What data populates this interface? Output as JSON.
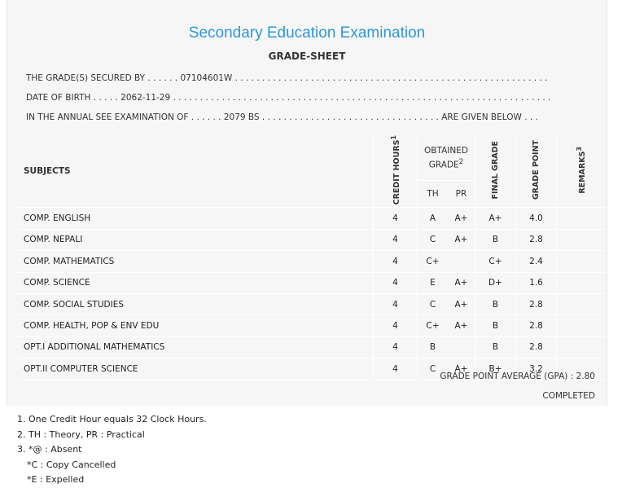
{
  "header": {
    "title": "Secondary Education Examination",
    "subtitle": "GRADE-SHEET"
  },
  "info": {
    "line1": "THE GRADE(S) SECURED BY . . . . . . 07104601W . . . . . . . . . . . . . . . . . . . . . . . . . . . . . . . . . . . . . . . . . . . . . . . . . . . . . . . . . .",
    "line2": "DATE OF BIRTH . . . . . 2062-11-29 . . . . . . . . . . . . . . . . . . . . . . . . . . . . . . . . . . . . . . . . . . . . . . . . . . . . . . . . . . . . . . . . . . . . . .",
    "line3": "IN THE ANNUAL SEE EXAMINATION OF . . . . . . 2079 BS . . . . . . . . . . . . . . . . . . . . . . . . . . . . . . . . . ARE GIVEN BELOW . . ."
  },
  "table": {
    "headers": {
      "subjects": "SUBJECTS",
      "credit": "CREDIT HOURS",
      "credit_sup": "1",
      "obtained": "OBTAINED GRADE",
      "obtained_sup": "2",
      "th": "TH",
      "pr": "PR",
      "final": "FINAL GRADE",
      "gp": "GRADE POINT",
      "remarks": "REMARKS",
      "remarks_sup": "3"
    },
    "rows": [
      {
        "subject": "COMP. ENGLISH",
        "credit": "4",
        "th": "A",
        "pr": "A+",
        "final": "A+",
        "gp": "4.0",
        "remarks": ""
      },
      {
        "subject": "COMP. NEPALI",
        "credit": "4",
        "th": "C",
        "pr": "A+",
        "final": "B",
        "gp": "2.8",
        "remarks": ""
      },
      {
        "subject": "COMP. MATHEMATICS",
        "credit": "4",
        "th": "C+",
        "pr": "",
        "final": "C+",
        "gp": "2.4",
        "remarks": ""
      },
      {
        "subject": "COMP. SCIENCE",
        "credit": "4",
        "th": "E",
        "pr": "A+",
        "final": "D+",
        "gp": "1.6",
        "remarks": ""
      },
      {
        "subject": "COMP. SOCIAL STUDIES",
        "credit": "4",
        "th": "C",
        "pr": "A+",
        "final": "B",
        "gp": "2.8",
        "remarks": ""
      },
      {
        "subject": "COMP. HEALTH, POP & ENV EDU",
        "credit": "4",
        "th": "C+",
        "pr": "A+",
        "final": "B",
        "gp": "2.8",
        "remarks": ""
      },
      {
        "subject": "OPT.I ADDITIONAL MATHEMATICS",
        "credit": "4",
        "th": "B",
        "pr": "",
        "final": "B",
        "gp": "2.8",
        "remarks": ""
      },
      {
        "subject": "OPT.II COMPUTER SCIENCE",
        "credit": "4",
        "th": "C",
        "pr": "A+",
        "final": "B+",
        "gp": "3.2",
        "remarks": ""
      }
    ]
  },
  "summary": {
    "gpa": "GRADE POINT AVERAGE (GPA) : 2.80",
    "status": "COMPLETED"
  },
  "notes": [
    "1. One Credit Hour equals 32 Clock Hours.",
    "2. TH : Theory, PR : Practical",
    "3. *@ : Absent",
    "*C : Copy Cancelled",
    "*E : Expelled"
  ]
}
